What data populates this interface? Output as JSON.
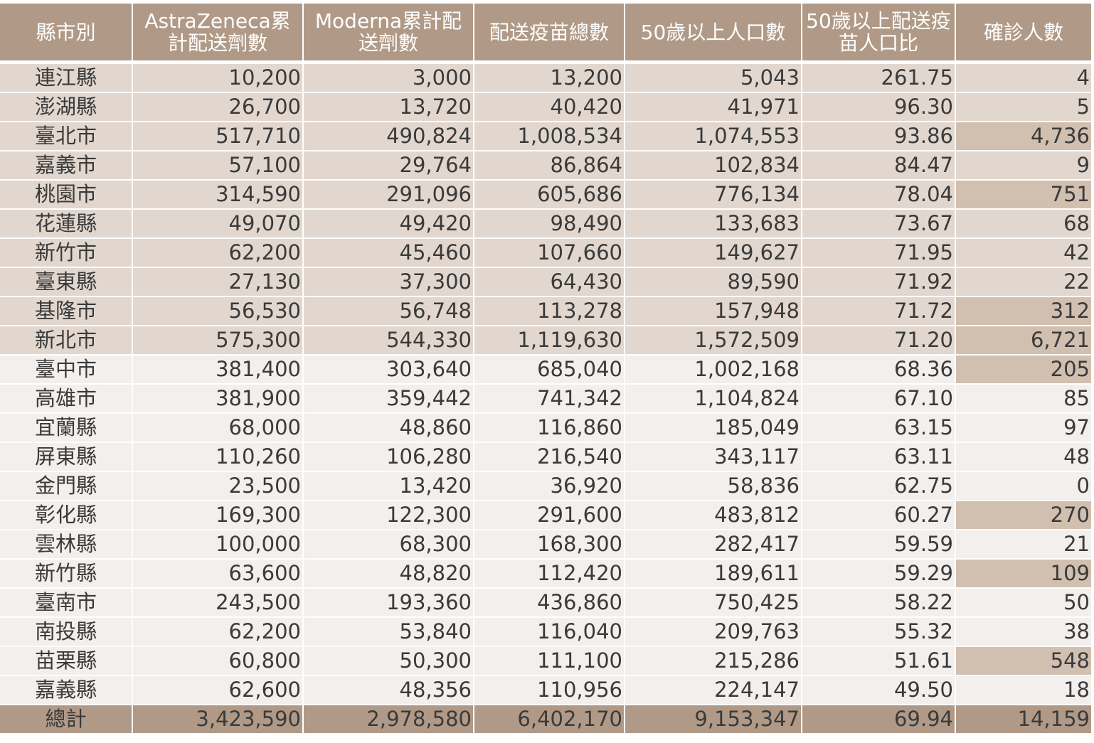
{
  "headers": [
    "縣市別",
    "AstraZeneca累計配送劑數",
    "Moderna累計配送劑數",
    "配送疫苗總數",
    "50歲以上人口數",
    "50歲以上配送疫苗人口比",
    "確診人數"
  ],
  "rows": [
    {
      "county": "連江縣",
      "az": "10,200",
      "moderna": "3,000",
      "total": "13,200",
      "pop50": "5,043",
      "ratio": "261.75",
      "cases": "4",
      "band": "dark",
      "hl": false
    },
    {
      "county": "澎湖縣",
      "az": "26,700",
      "moderna": "13,720",
      "total": "40,420",
      "pop50": "41,971",
      "ratio": "96.30",
      "cases": "5",
      "band": "dark",
      "hl": false
    },
    {
      "county": "臺北市",
      "az": "517,710",
      "moderna": "490,824",
      "total": "1,008,534",
      "pop50": "1,074,553",
      "ratio": "93.86",
      "cases": "4,736",
      "band": "dark",
      "hl": true
    },
    {
      "county": "嘉義市",
      "az": "57,100",
      "moderna": "29,764",
      "total": "86,864",
      "pop50": "102,834",
      "ratio": "84.47",
      "cases": "9",
      "band": "dark",
      "hl": false
    },
    {
      "county": "桃園市",
      "az": "314,590",
      "moderna": "291,096",
      "total": "605,686",
      "pop50": "776,134",
      "ratio": "78.04",
      "cases": "751",
      "band": "dark",
      "hl": true
    },
    {
      "county": "花蓮縣",
      "az": "49,070",
      "moderna": "49,420",
      "total": "98,490",
      "pop50": "133,683",
      "ratio": "73.67",
      "cases": "68",
      "band": "dark",
      "hl": false
    },
    {
      "county": "新竹市",
      "az": "62,200",
      "moderna": "45,460",
      "total": "107,660",
      "pop50": "149,627",
      "ratio": "71.95",
      "cases": "42",
      "band": "dark",
      "hl": false
    },
    {
      "county": "臺東縣",
      "az": "27,130",
      "moderna": "37,300",
      "total": "64,430",
      "pop50": "89,590",
      "ratio": "71.92",
      "cases": "22",
      "band": "dark",
      "hl": false
    },
    {
      "county": "基隆市",
      "az": "56,530",
      "moderna": "56,748",
      "total": "113,278",
      "pop50": "157,948",
      "ratio": "71.72",
      "cases": "312",
      "band": "dark",
      "hl": true
    },
    {
      "county": "新北市",
      "az": "575,300",
      "moderna": "544,330",
      "total": "1,119,630",
      "pop50": "1,572,509",
      "ratio": "71.20",
      "cases": "6,721",
      "band": "dark",
      "hl": true
    },
    {
      "county": "臺中市",
      "az": "381,400",
      "moderna": "303,640",
      "total": "685,040",
      "pop50": "1,002,168",
      "ratio": "68.36",
      "cases": "205",
      "band": "light",
      "hl": true
    },
    {
      "county": "高雄市",
      "az": "381,900",
      "moderna": "359,442",
      "total": "741,342",
      "pop50": "1,104,824",
      "ratio": "67.10",
      "cases": "85",
      "band": "light",
      "hl": false
    },
    {
      "county": "宜蘭縣",
      "az": "68,000",
      "moderna": "48,860",
      "total": "116,860",
      "pop50": "185,049",
      "ratio": "63.15",
      "cases": "97",
      "band": "light",
      "hl": false
    },
    {
      "county": "屏東縣",
      "az": "110,260",
      "moderna": "106,280",
      "total": "216,540",
      "pop50": "343,117",
      "ratio": "63.11",
      "cases": "48",
      "band": "light",
      "hl": false
    },
    {
      "county": "金門縣",
      "az": "23,500",
      "moderna": "13,420",
      "total": "36,920",
      "pop50": "58,836",
      "ratio": "62.75",
      "cases": "0",
      "band": "light",
      "hl": false
    },
    {
      "county": "彰化縣",
      "az": "169,300",
      "moderna": "122,300",
      "total": "291,600",
      "pop50": "483,812",
      "ratio": "60.27",
      "cases": "270",
      "band": "light",
      "hl": true
    },
    {
      "county": "雲林縣",
      "az": "100,000",
      "moderna": "68,300",
      "total": "168,300",
      "pop50": "282,417",
      "ratio": "59.59",
      "cases": "21",
      "band": "light",
      "hl": false
    },
    {
      "county": "新竹縣",
      "az": "63,600",
      "moderna": "48,820",
      "total": "112,420",
      "pop50": "189,611",
      "ratio": "59.29",
      "cases": "109",
      "band": "light",
      "hl": true
    },
    {
      "county": "臺南市",
      "az": "243,500",
      "moderna": "193,360",
      "total": "436,860",
      "pop50": "750,425",
      "ratio": "58.22",
      "cases": "50",
      "band": "light",
      "hl": false
    },
    {
      "county": "南投縣",
      "az": "62,200",
      "moderna": "53,840",
      "total": "116,040",
      "pop50": "209,763",
      "ratio": "55.32",
      "cases": "38",
      "band": "light",
      "hl": false
    },
    {
      "county": "苗栗縣",
      "az": "60,800",
      "moderna": "50,300",
      "total": "111,100",
      "pop50": "215,286",
      "ratio": "51.61",
      "cases": "548",
      "band": "light",
      "hl": true
    },
    {
      "county": "嘉義縣",
      "az": "62,600",
      "moderna": "48,356",
      "total": "110,956",
      "pop50": "224,147",
      "ratio": "49.50",
      "cases": "18",
      "band": "light",
      "hl": false
    }
  ],
  "total": {
    "county": "總計",
    "az": "3,423,590",
    "moderna": "2,978,580",
    "total": "6,402,170",
    "pop50": "9,153,347",
    "ratio": "69.94",
    "cases": "14,159"
  },
  "colors": {
    "header": "#b09a87",
    "band_dark": "#e2d7ce",
    "band_light": "#f2efec",
    "cases_highlight": "#d1bfb0"
  }
}
